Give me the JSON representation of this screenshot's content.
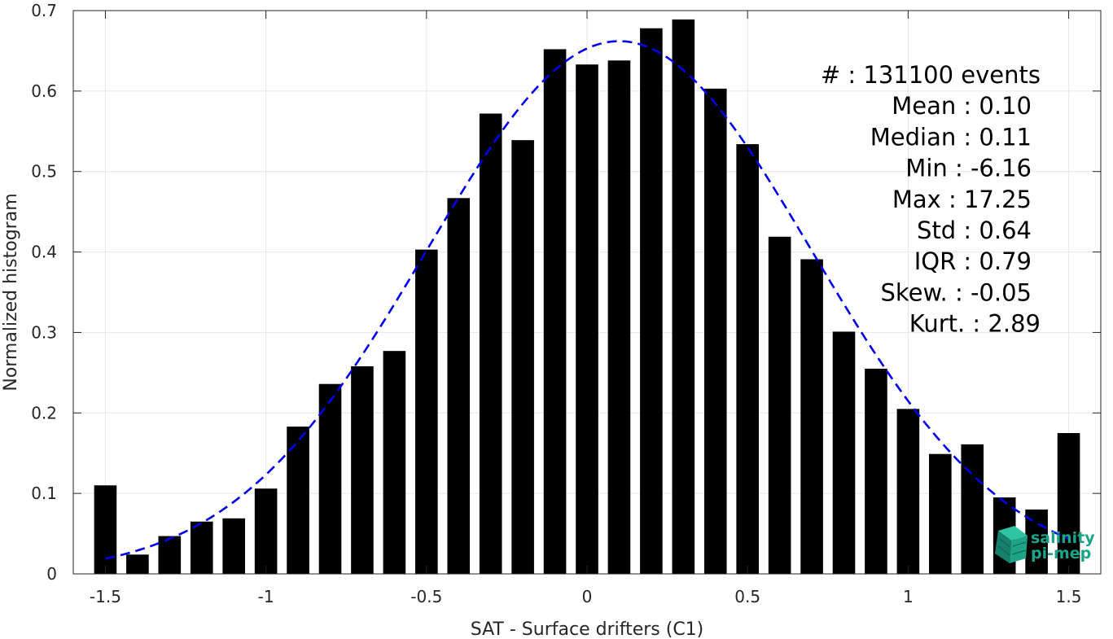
{
  "chart_data": {
    "type": "bar",
    "xlabel": "SAT - Surface drifters (C1)",
    "ylabel": "Normalized histogram",
    "xlim": [
      -1.6,
      1.6
    ],
    "ylim": [
      0,
      0.7
    ],
    "grid": true,
    "x_ticks": [
      -1.5,
      -1,
      -0.5,
      0,
      0.5,
      1,
      1.5
    ],
    "x_tick_labels": [
      "-1.5",
      "-1",
      "-0.5",
      "0",
      "0.5",
      "1",
      "1.5"
    ],
    "y_ticks": [
      0,
      0.1,
      0.2,
      0.3,
      0.4,
      0.5,
      0.6,
      0.7
    ],
    "y_tick_labels": [
      "0",
      "0.1",
      "0.2",
      "0.3",
      "0.4",
      "0.5",
      "0.6",
      "0.7"
    ],
    "bar_width": 0.07,
    "bars": {
      "x": [
        -1.5,
        -1.4,
        -1.3,
        -1.2,
        -1.1,
        -1.0,
        -0.9,
        -0.8,
        -0.7,
        -0.6,
        -0.5,
        -0.4,
        -0.3,
        -0.2,
        -0.1,
        0.0,
        0.1,
        0.2,
        0.3,
        0.4,
        0.5,
        0.6,
        0.7,
        0.8,
        0.9,
        1.0,
        1.1,
        1.2,
        1.3,
        1.4,
        1.5
      ],
      "values": [
        0.11,
        0.024,
        0.047,
        0.065,
        0.069,
        0.106,
        0.183,
        0.236,
        0.258,
        0.277,
        0.403,
        0.467,
        0.572,
        0.539,
        0.652,
        0.633,
        0.638,
        0.678,
        0.689,
        0.603,
        0.534,
        0.419,
        0.391,
        0.301,
        0.255,
        0.205,
        0.149,
        0.161,
        0.095,
        0.08,
        0.175
      ],
      "color": "#000000"
    },
    "fit_curve": {
      "style": "dashed",
      "color": "#0000ee",
      "mean": 0.1,
      "std": 0.6,
      "peak": 0.662,
      "x_range": [
        -1.5,
        1.5
      ]
    },
    "stats_lines": [
      "#  : 131100 events",
      "Mean : 0.10",
      "Median : 0.11",
      "Min : -6.16",
      "Max : 17.25",
      "Std : 0.64",
      "IQR : 0.79",
      "Skew. : -0.05",
      "Kurt. : 2.89"
    ]
  },
  "logo": {
    "line1": "salinity",
    "line2": "pi-mep",
    "color": "#1aa58a"
  }
}
